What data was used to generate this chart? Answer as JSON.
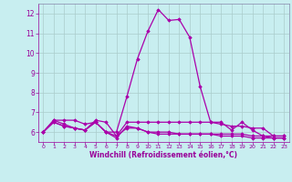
{
  "xlabel": "Windchill (Refroidissement éolien,°C)",
  "background_color": "#c8eef0",
  "grid_color": "#aacccc",
  "line_color": "#aa00aa",
  "xlim": [
    -0.5,
    23.5
  ],
  "ylim": [
    5.5,
    12.5
  ],
  "yticks": [
    6,
    7,
    8,
    9,
    10,
    11,
    12
  ],
  "xticks": [
    0,
    1,
    2,
    3,
    4,
    5,
    6,
    7,
    8,
    9,
    10,
    11,
    12,
    13,
    14,
    15,
    16,
    17,
    18,
    19,
    20,
    21,
    22,
    23
  ],
  "series": [
    [
      6.0,
      6.6,
      6.6,
      6.6,
      6.4,
      6.5,
      6.0,
      6.0,
      7.8,
      9.7,
      11.1,
      12.2,
      11.65,
      11.7,
      10.8,
      8.3,
      6.5,
      6.5,
      6.1,
      6.5,
      6.1,
      5.8,
      5.8,
      5.8
    ],
    [
      6.0,
      6.6,
      6.4,
      6.2,
      6.1,
      6.6,
      6.5,
      5.8,
      6.5,
      6.5,
      6.5,
      6.5,
      6.5,
      6.5,
      6.5,
      6.5,
      6.5,
      6.4,
      6.3,
      6.3,
      6.2,
      6.2,
      5.8,
      5.8
    ],
    [
      6.0,
      6.5,
      6.3,
      6.2,
      6.1,
      6.5,
      6.0,
      5.7,
      6.3,
      6.2,
      6.0,
      6.0,
      6.0,
      5.9,
      5.9,
      5.9,
      5.9,
      5.9,
      5.9,
      5.9,
      5.8,
      5.8,
      5.7,
      5.7
    ],
    [
      6.0,
      6.5,
      6.3,
      6.2,
      6.1,
      6.5,
      6.0,
      5.8,
      6.2,
      6.2,
      6.0,
      5.9,
      5.9,
      5.9,
      5.9,
      5.9,
      5.9,
      5.8,
      5.8,
      5.8,
      5.7,
      5.7,
      5.7,
      5.7
    ]
  ],
  "tick_color": "#990099",
  "label_color": "#990099",
  "spine_color": "#8888aa"
}
